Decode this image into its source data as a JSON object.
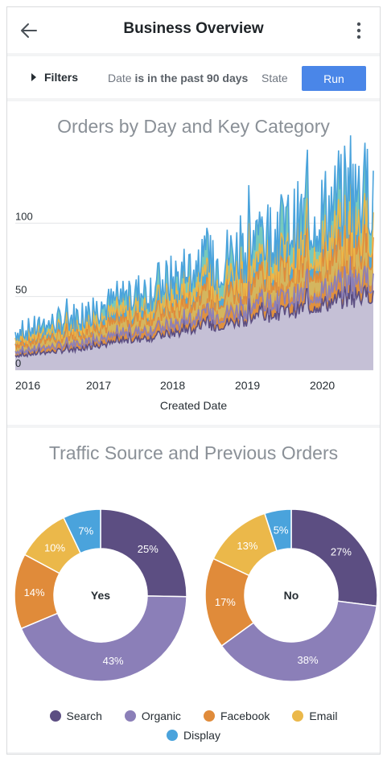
{
  "header": {
    "title": "Business Overview",
    "back_icon": "arrow-left-icon",
    "more_icon": "more-vertical-icon"
  },
  "filters": {
    "toggle_label": "Filters",
    "date_field": "Date",
    "date_condition": "is in the past 90 days",
    "state_field": "State",
    "run_label": "Run"
  },
  "colors": {
    "search": "#5c4e82",
    "organic": "#8b7fb8",
    "facebook": "#e08b3a",
    "email": "#ebb84a",
    "display": "#4aa3dc",
    "teal": "#5fbfb0",
    "accent": "#4a86e8"
  },
  "orders_chart": {
    "title": "Orders by Day and Key Category",
    "xlabel": "Created Date",
    "x_ticks": [
      "2016",
      "2017",
      "2018",
      "2019",
      "2020"
    ],
    "y_ticks": [
      "0",
      "50",
      "100"
    ],
    "chart_data": {
      "type": "area",
      "x_range": [
        "2016-01",
        "2020-09"
      ],
      "ylim": [
        0,
        150
      ],
      "series": [
        {
          "stack_top_start": 10,
          "stack_top_end": 52
        },
        {
          "stack_top_start": 14,
          "stack_top_end": 68
        },
        {
          "stack_top_start": 18,
          "stack_top_end": 85
        },
        {
          "stack_top_start": 22,
          "stack_top_end": 100
        },
        {
          "stack_top_start": 26,
          "stack_top_end": 125
        }
      ]
    }
  },
  "traffic_chart": {
    "title": "Traffic Source and Previous Orders",
    "chart_data": [
      {
        "type": "pie",
        "center_label": "Yes",
        "slices": [
          {
            "name": "Search",
            "value": 25
          },
          {
            "name": "Organic",
            "value": 43
          },
          {
            "name": "Facebook",
            "value": 14
          },
          {
            "name": "Email",
            "value": 10
          },
          {
            "name": "Display",
            "value": 7
          }
        ]
      },
      {
        "type": "pie",
        "center_label": "No",
        "slices": [
          {
            "name": "Search",
            "value": 27
          },
          {
            "name": "Organic",
            "value": 38
          },
          {
            "name": "Facebook",
            "value": 17
          },
          {
            "name": "Email",
            "value": 13
          },
          {
            "name": "Display",
            "value": 5
          }
        ]
      }
    ],
    "legend": [
      "Search",
      "Organic",
      "Facebook",
      "Email",
      "Display"
    ]
  }
}
